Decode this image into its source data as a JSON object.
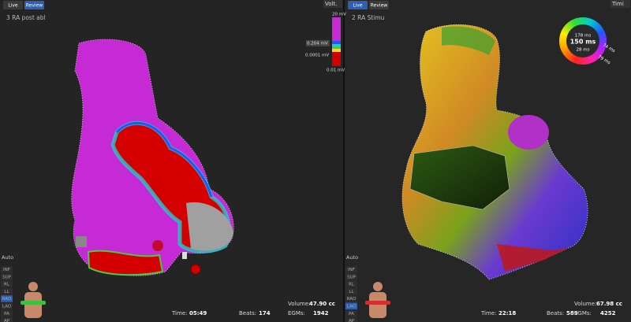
{
  "panels": [
    {
      "tabs": [
        "Live",
        "Review"
      ],
      "map_name": "3 RA post abl",
      "map_menu": "Volt.",
      "scale_labels": [
        "20 mV",
        "0.204 mV",
        "0.0001 mV",
        "0.01 mV"
      ],
      "auto_button": "Auto",
      "views": [
        "INF",
        "SUP",
        "RL",
        "LL",
        "RAO",
        "LAO",
        "PA",
        "AP"
      ],
      "footer": {
        "time_label": "Time:",
        "time": "05:49",
        "beats_label": "Beats:",
        "beats": "174",
        "volume_label": "Volume:",
        "volume": "47.90 cc",
        "egms_label": "EGMs:",
        "egms": "1942"
      }
    },
    {
      "tabs": [
        "Live",
        "Review"
      ],
      "map_name": "2 RA Stimu",
      "map_menu": "Timi",
      "ring_labels": [
        "178 ms",
        "150 ms",
        "28 ms",
        "74 ms",
        "79 ms"
      ],
      "auto_button": "Auto",
      "views": [
        "INF",
        "SUP",
        "RL",
        "LL",
        "RAO",
        "LAO",
        "PA",
        "AP"
      ],
      "footer": {
        "time_label": "Time:",
        "time": "22:18",
        "beats_label": "Beats:",
        "beats": "589",
        "volume_label": "Volume:",
        "volume": "67.98 cc",
        "egms_label": "EGMs:",
        "egms": "4252"
      }
    }
  ]
}
